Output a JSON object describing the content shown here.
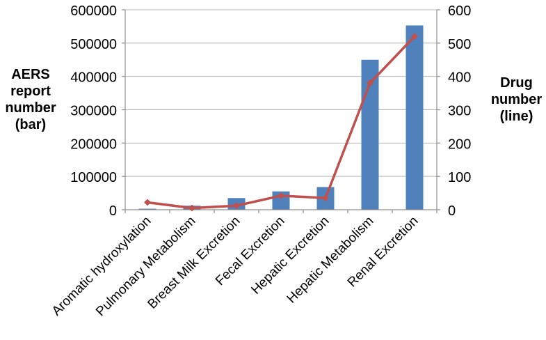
{
  "chart_data": {
    "type": "bar",
    "categories": [
      "Aromatic hydroxylation",
      "Pulmonary Metabolism",
      "Breast Milk Excretion",
      "Fecal Excretion",
      "Hepatic Excretion",
      "Hepatic Metabolism",
      "Renal Excretion"
    ],
    "series": [
      {
        "type": "bar",
        "axis": "left",
        "values": [
          3000,
          12000,
          35000,
          55000,
          68000,
          450000,
          553000
        ],
        "color": "#4F81BD"
      },
      {
        "type": "line",
        "axis": "right",
        "values": [
          22,
          5,
          12,
          42,
          35,
          380,
          520
        ],
        "color": "#C0504D"
      }
    ],
    "y_left": {
      "label_lines": [
        "AERS",
        "report",
        "number",
        "(bar)"
      ],
      "range": [
        0,
        600000
      ],
      "ticks": [
        "0",
        "100000",
        "200000",
        "300000",
        "400000",
        "500000",
        "600000"
      ]
    },
    "y_right": {
      "label_lines": [
        "Drug",
        "number",
        "(line)"
      ],
      "range": [
        0,
        600
      ],
      "ticks": [
        "0",
        "100",
        "200",
        "300",
        "400",
        "500",
        "600"
      ]
    },
    "grid": true,
    "legend": "none"
  }
}
